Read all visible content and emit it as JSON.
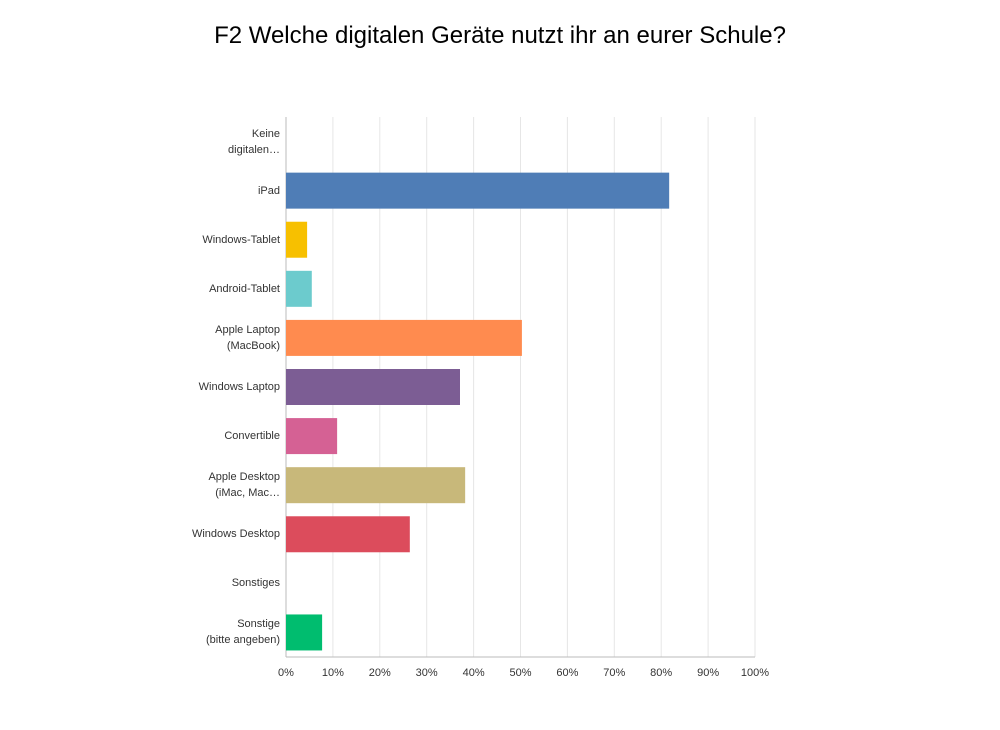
{
  "chart_data": {
    "type": "hbar",
    "title": "F2 Welche digitalen Geräte nutzt ihr an eurer Schule?",
    "categories": [
      "Keine\ndigitalen…",
      "iPad",
      "Windows-Tablet",
      "Android-Tablet",
      "Apple Laptop\n(MacBook)",
      "Windows Laptop",
      "Convertible",
      "Apple Desktop\n(iMac, Mac…",
      "Windows Desktop",
      "Sonstiges",
      "Sonstige\n(bitte angeben)"
    ],
    "values": [
      0,
      81.7,
      4.5,
      5.5,
      50.3,
      37.1,
      10.9,
      38.2,
      26.4,
      0,
      7.7
    ],
    "colors": [
      "#4f7db6",
      "#4f7db6",
      "#f7c000",
      "#6ccbcd",
      "#ff8b4f",
      "#7c5d94",
      "#d56194",
      "#c8b87a",
      "#dc4c5c",
      "#4f7db6",
      "#00bd6f"
    ],
    "xlim": [
      0,
      100
    ],
    "xticks": [
      {
        "value": 0,
        "label": "0%"
      },
      {
        "value": 10,
        "label": "10%"
      },
      {
        "value": 20,
        "label": "20%"
      },
      {
        "value": 30,
        "label": "30%"
      },
      {
        "value": 40,
        "label": "40%"
      },
      {
        "value": 50,
        "label": "50%"
      },
      {
        "value": 60,
        "label": "60%"
      },
      {
        "value": 70,
        "label": "70%"
      },
      {
        "value": 80,
        "label": "80%"
      },
      {
        "value": 90,
        "label": "90%"
      },
      {
        "value": 100,
        "label": "100%"
      }
    ],
    "grid": true
  }
}
